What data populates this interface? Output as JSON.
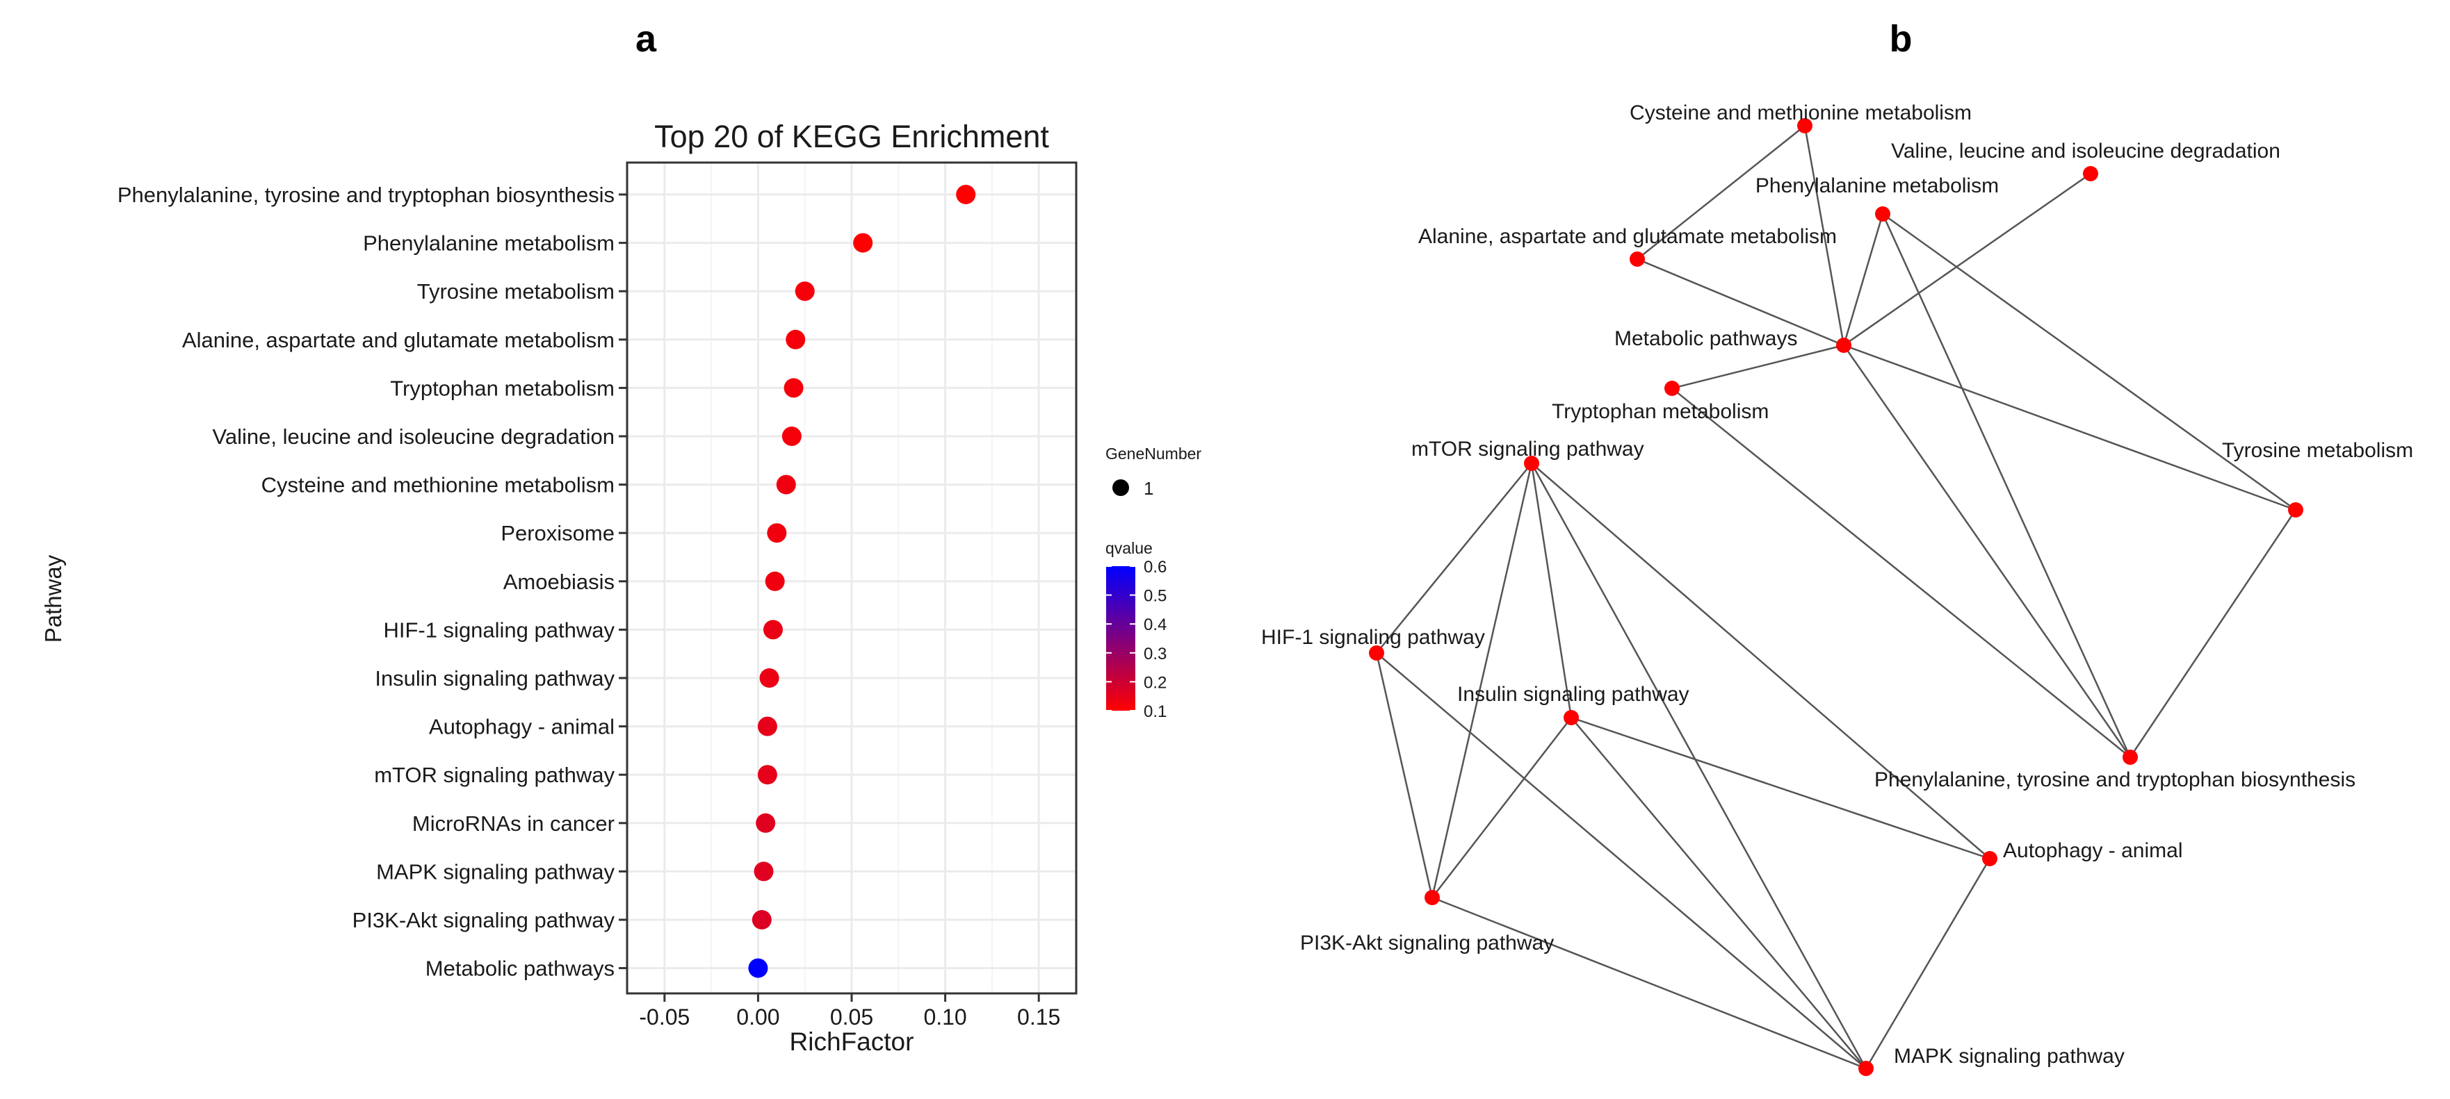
{
  "panels": {
    "a": "a",
    "b": "b"
  },
  "chart_data": [
    {
      "type": "scatter",
      "title": "Top 20 of KEGG Enrichment",
      "xlabel": "RichFactor",
      "ylabel": "Pathway",
      "xlim": [
        -0.07,
        0.17
      ],
      "xticks": [
        "-0.05",
        "0.00",
        "0.05",
        "0.10",
        "0.15"
      ],
      "xtick_values": [
        -0.05,
        0,
        0.05,
        0.1,
        0.15
      ],
      "grid": true,
      "legend_position": "right",
      "categories": [
        "Phenylalanine, tyrosine and tryptophan biosynthesis",
        "Phenylalanine metabolism",
        "Tyrosine metabolism",
        "Alanine, aspartate and glutamate metabolism",
        "Tryptophan metabolism",
        "Valine, leucine and isoleucine degradation",
        "Cysteine and methionine metabolism",
        "Peroxisome",
        "Amoebiasis",
        "HIF-1 signaling pathway",
        "Insulin signaling pathway",
        "Autophagy - animal",
        "mTOR signaling pathway",
        "MicroRNAs in cancer",
        "MAPK signaling pathway",
        "PI3K-Akt signaling pathway",
        "Metabolic pathways"
      ],
      "richfactor": [
        0.111,
        0.056,
        0.025,
        0.02,
        0.019,
        0.018,
        0.015,
        0.01,
        0.009,
        0.008,
        0.006,
        0.005,
        0.005,
        0.004,
        0.003,
        0.002,
        0.0
      ],
      "qvalue": [
        0.1,
        0.1,
        0.12,
        0.12,
        0.12,
        0.12,
        0.13,
        0.13,
        0.13,
        0.14,
        0.14,
        0.15,
        0.15,
        0.16,
        0.16,
        0.17,
        0.6
      ],
      "gene_number": [
        1,
        1,
        1,
        1,
        1,
        1,
        1,
        1,
        1,
        1,
        1,
        1,
        1,
        1,
        1,
        1,
        1
      ],
      "size_legend": {
        "title": "GeneNumber",
        "label": "1"
      },
      "color_legend": {
        "title": "qvalue",
        "ticks": [
          "0.6",
          "0.5",
          "0.4",
          "0.3",
          "0.2",
          "0.1"
        ],
        "tick_values": [
          0.6,
          0.5,
          0.4,
          0.3,
          0.2,
          0.1
        ],
        "range": [
          0.1,
          0.6
        ],
        "low_color": "#FF0000",
        "high_color": "#0000FF"
      },
      "colors": {
        "panel_border": "#333333",
        "grid": "#ebebeb"
      }
    },
    {
      "type": "network",
      "node_color": "#FF0000",
      "edge_color": "#555555",
      "nodes": [
        {
          "id": "cys",
          "label": "Cysteine and methionine metabolism"
        },
        {
          "id": "val",
          "label": "Valine, leucine and isoleucine degradation"
        },
        {
          "id": "phe",
          "label": "Phenylalanine metabolism"
        },
        {
          "id": "ala",
          "label": "Alanine, aspartate and glutamate metabolism"
        },
        {
          "id": "met",
          "label": "Metabolic pathways"
        },
        {
          "id": "trp",
          "label": "Tryptophan metabolism"
        },
        {
          "id": "mtor",
          "label": "mTOR signaling pathway"
        },
        {
          "id": "tyr",
          "label": "Tyrosine metabolism"
        },
        {
          "id": "hif",
          "label": "HIF-1 signaling pathway"
        },
        {
          "id": "ins",
          "label": "Insulin signaling pathway"
        },
        {
          "id": "pttb",
          "label": "Phenylalanine, tyrosine and tryptophan biosynthesis"
        },
        {
          "id": "auto",
          "label": "Autophagy - animal"
        },
        {
          "id": "pi3k",
          "label": "PI3K-Akt signaling pathway"
        },
        {
          "id": "mapk",
          "label": "MAPK signaling pathway"
        }
      ],
      "edges": [
        [
          "cys",
          "ala"
        ],
        [
          "cys",
          "met"
        ],
        [
          "val",
          "met"
        ],
        [
          "phe",
          "met"
        ],
        [
          "phe",
          "pttb"
        ],
        [
          "phe",
          "tyr"
        ],
        [
          "ala",
          "met"
        ],
        [
          "met",
          "trp"
        ],
        [
          "met",
          "tyr"
        ],
        [
          "met",
          "pttb"
        ],
        [
          "trp",
          "pttb"
        ],
        [
          "tyr",
          "pttb"
        ],
        [
          "mtor",
          "hif"
        ],
        [
          "mtor",
          "ins"
        ],
        [
          "mtor",
          "pi3k"
        ],
        [
          "mtor",
          "mapk"
        ],
        [
          "mtor",
          "auto"
        ],
        [
          "hif",
          "pi3k"
        ],
        [
          "hif",
          "mapk"
        ],
        [
          "ins",
          "pi3k"
        ],
        [
          "ins",
          "mapk"
        ],
        [
          "ins",
          "auto"
        ],
        [
          "auto",
          "mapk"
        ],
        [
          "pi3k",
          "mapk"
        ]
      ]
    }
  ]
}
